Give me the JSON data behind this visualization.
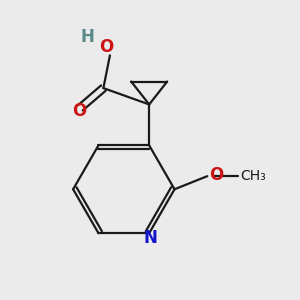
{
  "background_color": "#ebebeb",
  "bond_color": "#1a1a1a",
  "N_color": "#1414cc",
  "O_color": "#cc1414",
  "line_width": 1.6,
  "dbo": 0.012,
  "figsize": [
    3.0,
    3.0
  ],
  "dpi": 100,
  "xlim": [
    0.1,
    0.9
  ],
  "ylim": [
    0.05,
    0.95
  ]
}
